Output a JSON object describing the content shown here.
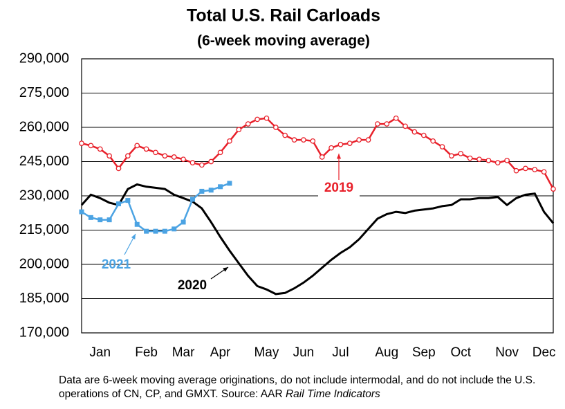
{
  "chart_data": {
    "type": "line",
    "title": "Total U.S. Rail Carloads",
    "subtitle": "(6-week moving average)",
    "categories": [
      null,
      null,
      "Jan",
      null,
      null,
      null,
      null,
      "Feb",
      null,
      null,
      null,
      "Mar",
      null,
      null,
      null,
      "Apr",
      null,
      null,
      null,
      null,
      "May",
      null,
      null,
      null,
      "Jun",
      null,
      null,
      null,
      "Jul",
      null,
      null,
      null,
      null,
      "Aug",
      null,
      null,
      null,
      "Sep",
      null,
      null,
      null,
      "Oct",
      null,
      null,
      null,
      null,
      "Nov",
      null,
      null,
      null,
      "Dec",
      null
    ],
    "ylim": [
      170000,
      290000
    ],
    "yticks": [
      {
        "value": 170000,
        "label": "170,000"
      },
      {
        "value": 185000,
        "label": "185,000"
      },
      {
        "value": 200000,
        "label": "200,000"
      },
      {
        "value": 215000,
        "label": "215,000"
      },
      {
        "value": 230000,
        "label": "230,000"
      },
      {
        "value": 245000,
        "label": "245,000"
      },
      {
        "value": 260000,
        "label": "260,000"
      },
      {
        "value": 275000,
        "label": "275,000"
      },
      {
        "value": 290000,
        "label": "290,000"
      }
    ],
    "grid": true,
    "series": [
      {
        "name": "2019",
        "color": "#e8202a",
        "marker": "circle",
        "values": [
          253000,
          252000,
          250500,
          247500,
          242000,
          247500,
          252000,
          250500,
          249000,
          247500,
          247000,
          246000,
          244500,
          243500,
          245000,
          249000,
          254000,
          259000,
          261500,
          263500,
          264000,
          260000,
          256500,
          254500,
          254500,
          254000,
          247000,
          251000,
          252500,
          253000,
          254500,
          254500,
          261500,
          261500,
          264000,
          260500,
          258000,
          256500,
          254000,
          251500,
          247500,
          248500,
          246500,
          246000,
          245500,
          244500,
          245500,
          241000,
          242000,
          241500,
          240500,
          233000
        ]
      },
      {
        "name": "2020",
        "color": "#000000",
        "marker": null,
        "values": [
          226000,
          230500,
          229000,
          227000,
          226000,
          233000,
          235000,
          234000,
          233500,
          233000,
          230500,
          229000,
          227500,
          224500,
          218500,
          212000,
          206000,
          200500,
          195000,
          190500,
          189000,
          187000,
          187500,
          189500,
          192000,
          195000,
          198500,
          202000,
          205000,
          207500,
          211000,
          215500,
          220000,
          222000,
          223000,
          222500,
          223500,
          224000,
          224500,
          225500,
          226000,
          228500,
          228500,
          229000,
          229000,
          229500,
          226000,
          229000,
          230500,
          231000,
          223000,
          218000
        ]
      },
      {
        "name": "2021",
        "color": "#4ba3e3",
        "marker": "square",
        "values": [
          223000,
          220500,
          219500,
          219500,
          226500,
          228000,
          217500,
          214500,
          214500,
          214500,
          215500,
          218500,
          228500,
          232000,
          232500,
          234000,
          235500,
          null,
          null,
          null,
          null,
          null,
          null,
          null,
          null,
          null,
          null,
          null,
          null,
          null,
          null,
          null,
          null,
          null,
          null,
          null,
          null,
          null,
          null,
          null,
          null,
          null,
          null,
          null,
          null,
          null,
          null,
          null,
          null,
          null,
          null,
          null
        ]
      }
    ],
    "note": "Data are 6-week moving average originations, do not include intermodal, and do not include the U.S. operations of CN, CP, and GMXT.   Source: AAR",
    "note_source": "Rail Time Indicators"
  }
}
